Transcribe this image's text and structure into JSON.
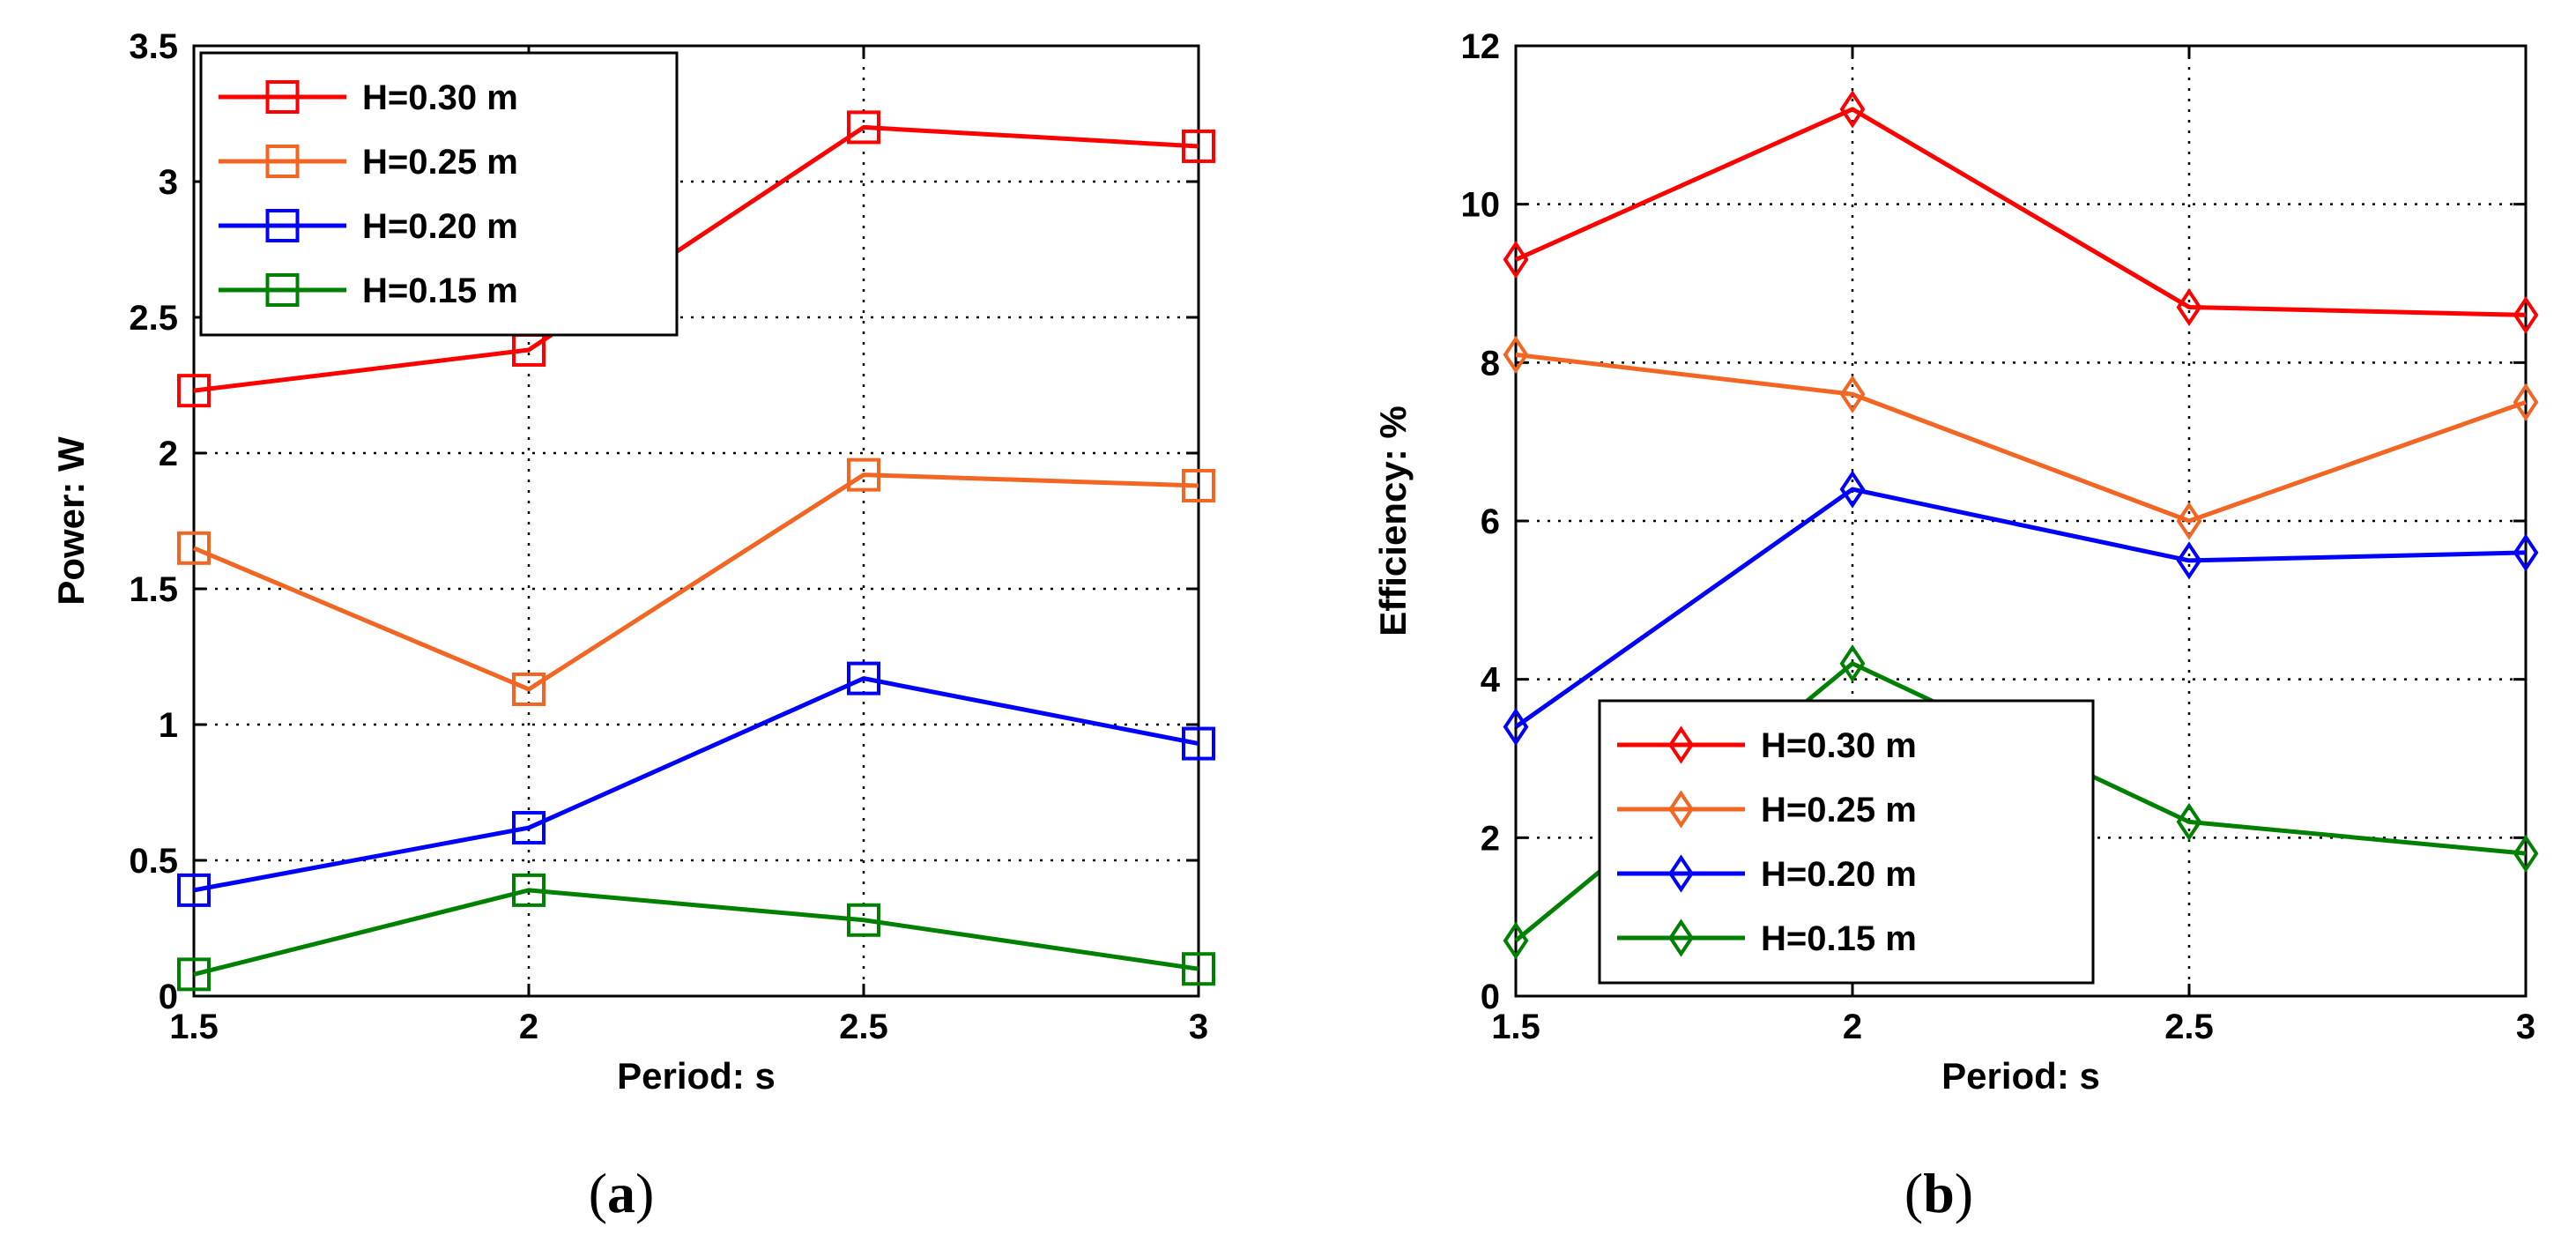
{
  "colors": {
    "H=0.30 m": "#ff0000",
    "H=0.25 m": "#f26522",
    "H=0.20 m": "#0000ff",
    "H=0.15 m": "#008000"
  },
  "chart_data": [
    {
      "panel": "a",
      "caption": {
        "open": "(",
        "letter": "a",
        "close": ")"
      },
      "type": "line",
      "title": "",
      "xlabel": "Period: s",
      "ylabel": "Power: W",
      "xlim": [
        1.5,
        3
      ],
      "ylim": [
        0,
        3.5
      ],
      "xticks": [
        1.5,
        2,
        2.5,
        3
      ],
      "xtick_labels": [
        "1.5",
        "2",
        "2.5",
        "3"
      ],
      "yticks": [
        0,
        0.5,
        1,
        1.5,
        2,
        2.5,
        3,
        3.5
      ],
      "ytick_labels": [
        "0",
        "0.5",
        "1",
        "1.5",
        "2",
        "2.5",
        "3",
        "3.5"
      ],
      "grid": true,
      "marker": "square",
      "legend_position": "top-left",
      "x": [
        1.5,
        2,
        2.5,
        3
      ],
      "series": [
        {
          "name": "H=0.30 m",
          "values": [
            2.23,
            2.38,
            3.2,
            3.13
          ]
        },
        {
          "name": "H=0.25 m",
          "values": [
            1.65,
            1.13,
            1.92,
            1.88
          ]
        },
        {
          "name": "H=0.20 m",
          "values": [
            0.39,
            0.62,
            1.17,
            0.93
          ]
        },
        {
          "name": "H=0.15 m",
          "values": [
            0.08,
            0.39,
            0.28,
            0.1
          ]
        }
      ]
    },
    {
      "panel": "b",
      "caption": {
        "open": "(",
        "letter": "b",
        "close": ")"
      },
      "type": "line",
      "title": "",
      "xlabel": "Period: s",
      "ylabel": "Efficiency: %",
      "xlim": [
        1.5,
        3
      ],
      "ylim": [
        0,
        12
      ],
      "xticks": [
        1.5,
        2,
        2.5,
        3
      ],
      "xtick_labels": [
        "1.5",
        "2",
        "2.5",
        "3"
      ],
      "yticks": [
        0,
        2,
        4,
        6,
        8,
        10,
        12
      ],
      "ytick_labels": [
        "0",
        "2",
        "4",
        "6",
        "8",
        "10",
        "12"
      ],
      "grid": true,
      "marker": "diamond",
      "legend_position": "bottom-left",
      "x": [
        1.5,
        2,
        2.5,
        3
      ],
      "series": [
        {
          "name": "H=0.30 m",
          "values": [
            9.3,
            11.2,
            8.7,
            8.6
          ]
        },
        {
          "name": "H=0.25 m",
          "values": [
            8.1,
            7.6,
            6.0,
            7.5
          ]
        },
        {
          "name": "H=0.20 m",
          "values": [
            3.4,
            6.4,
            5.5,
            5.6
          ]
        },
        {
          "name": "H=0.15 m",
          "values": [
            0.7,
            4.2,
            2.2,
            1.8
          ]
        }
      ]
    }
  ]
}
